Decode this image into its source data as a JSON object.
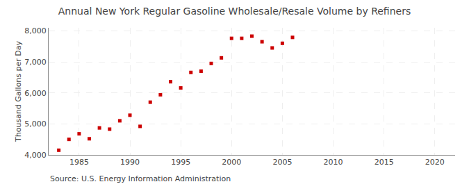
{
  "chart_data": {
    "type": "scatter",
    "title": "Annual New York Regular Gasoline Wholesale/Resale Volume by Refiners",
    "ylabel": "Thousand Gallons per Day",
    "annotations": [
      "Source: U.S. Energy Information Administration"
    ],
    "x": [
      1983,
      1984,
      1985,
      1986,
      1987,
      1988,
      1989,
      1990,
      1991,
      1992,
      1993,
      1994,
      1995,
      1996,
      1997,
      1998,
      1999,
      2000,
      2001,
      2002,
      2003,
      2004,
      2005,
      2006
    ],
    "values": [
      4150,
      4500,
      4680,
      4520,
      4870,
      4830,
      5100,
      5280,
      4920,
      5700,
      5940,
      6360,
      6160,
      6660,
      6700,
      6950,
      7130,
      7760,
      7760,
      7830,
      7650,
      7450,
      7600,
      7790
    ],
    "color": "#cc0000",
    "marker": "square",
    "xlim": [
      1982,
      2022
    ],
    "xticks": [
      1985,
      1990,
      1995,
      2000,
      2005,
      2010,
      2015,
      2020
    ],
    "ylim": [
      4000,
      8100
    ],
    "yticks": [
      {
        "value": 4000,
        "label": "4,000"
      },
      {
        "value": 5000,
        "label": "5,000"
      },
      {
        "value": 6000,
        "label": "6,000"
      },
      {
        "value": 7000,
        "label": "7,000"
      },
      {
        "value": 8000,
        "label": "8,000"
      }
    ],
    "grid": true
  }
}
